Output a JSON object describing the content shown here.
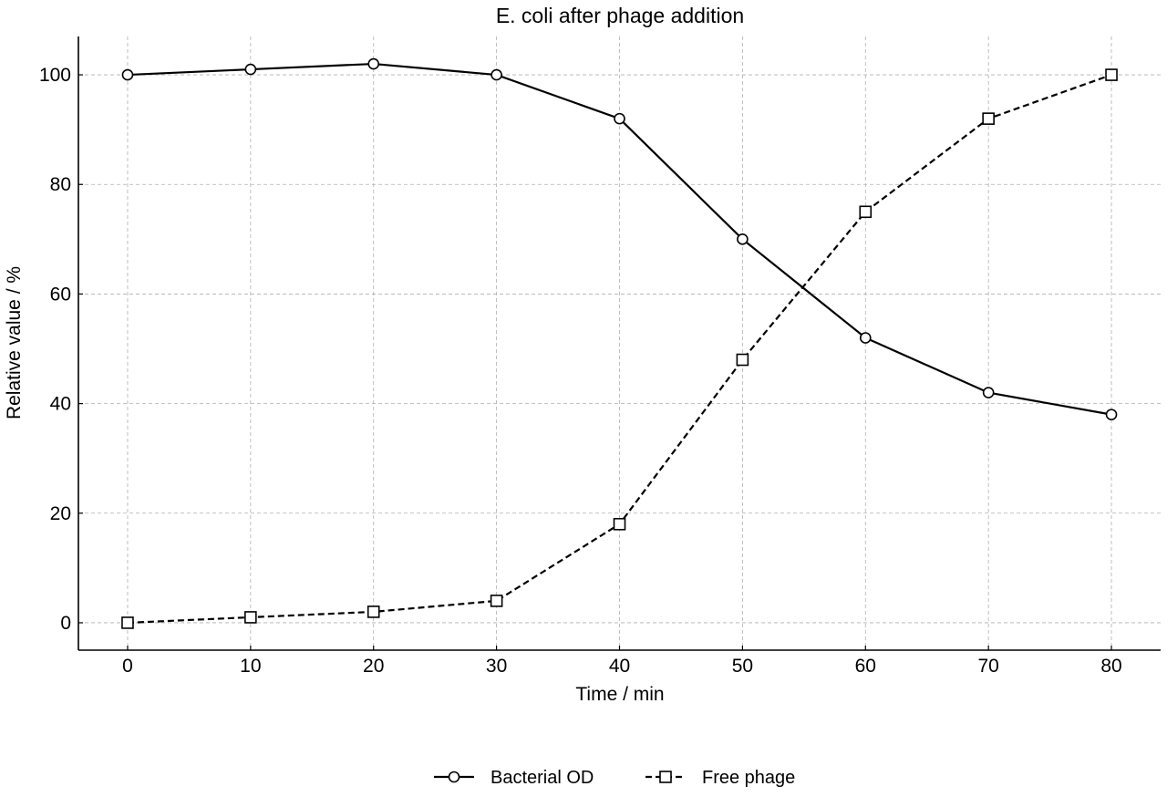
{
  "chart_data": {
    "type": "line",
    "title": "E. coli after phage addition",
    "xlabel": "Time / min",
    "ylabel": "Relative value / %",
    "x": [
      0,
      10,
      20,
      30,
      40,
      50,
      60,
      70,
      80
    ],
    "xlim": [
      -4,
      84
    ],
    "ylim": [
      -5,
      107
    ],
    "xticks": [
      0,
      10,
      20,
      30,
      40,
      50,
      60,
      70,
      80
    ],
    "yticks": [
      0,
      20,
      40,
      60,
      80,
      100
    ],
    "grid": true,
    "legend_position": "bottom-center",
    "series": [
      {
        "name": "Bacterial OD",
        "values": [
          100,
          101,
          102,
          100,
          92,
          70,
          52,
          42,
          38
        ],
        "line_style": "solid",
        "marker": "circle",
        "color": "#000000"
      },
      {
        "name": "Free phage",
        "values": [
          0,
          1,
          2,
          4,
          18,
          48,
          75,
          92,
          100
        ],
        "line_style": "dashed",
        "marker": "square",
        "color": "#000000"
      }
    ]
  }
}
